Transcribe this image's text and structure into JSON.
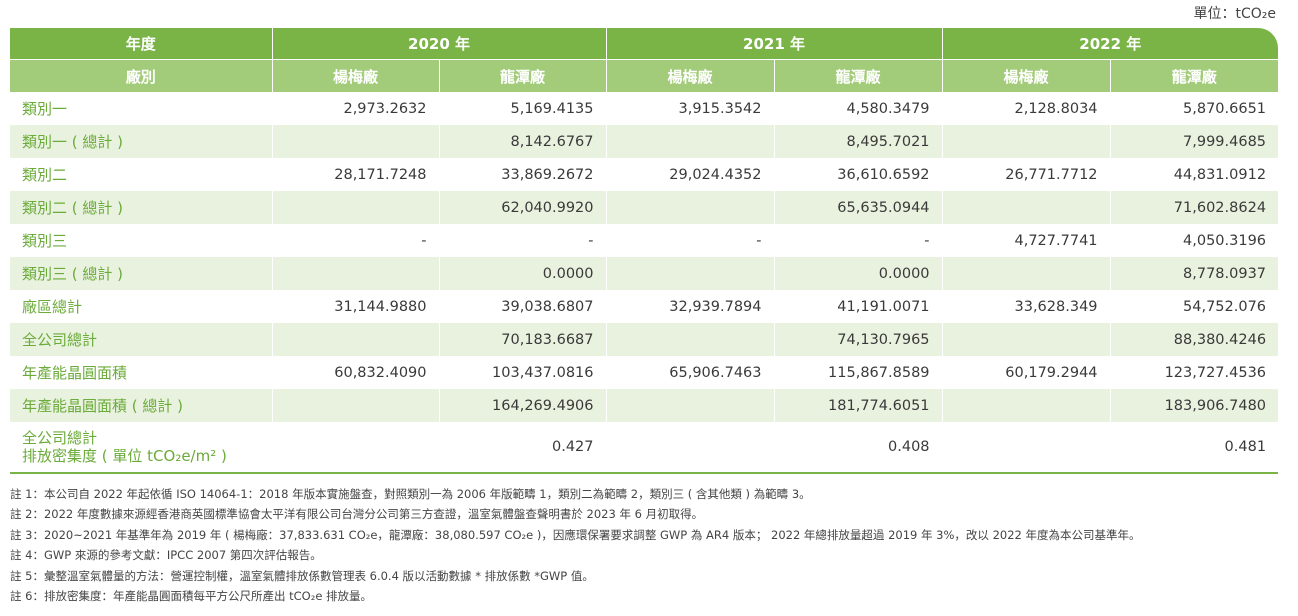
{
  "unit_label": "單位：tCO₂e",
  "header": {
    "year_label": "年度",
    "plant_label": "廠別",
    "years": [
      "2020 年",
      "2021 年",
      "2022 年"
    ],
    "plants": [
      "楊梅廠",
      "龍潭廠",
      "楊梅廠",
      "龍潭廠",
      "楊梅廠",
      "龍潭廠"
    ]
  },
  "rows": [
    {
      "label": "類別一",
      "cells": [
        "2,973.2632",
        "5,169.4135",
        "3,915.3542",
        "4,580.3479",
        "2,128.8034",
        "5,870.6651"
      ]
    },
    {
      "label": "類別一 ( 總計 )",
      "cells": [
        "",
        "8,142.6767",
        "",
        "8,495.7021",
        "",
        "7,999.4685"
      ]
    },
    {
      "label": "類別二",
      "cells": [
        "28,171.7248",
        "33,869.2672",
        "29,024.4352",
        "36,610.6592",
        "26,771.7712",
        "44,831.0912"
      ]
    },
    {
      "label": "類別二 ( 總計 )",
      "cells": [
        "",
        "62,040.9920",
        "",
        "65,635.0944",
        "",
        "71,602.8624"
      ]
    },
    {
      "label": "類別三",
      "cells": [
        "-",
        "-",
        "-",
        "-",
        "4,727.7741",
        "4,050.3196"
      ]
    },
    {
      "label": "類別三 ( 總計 )",
      "cells": [
        "",
        "0.0000",
        "",
        "0.0000",
        "",
        "8,778.0937"
      ]
    },
    {
      "label": "廠區總計",
      "cells": [
        "31,144.9880",
        "39,038.6807",
        "32,939.7894",
        "41,191.0071",
        "33,628.349",
        "54,752.076"
      ]
    },
    {
      "label": "全公司總計",
      "cells": [
        "",
        "70,183.6687",
        "",
        "74,130.7965",
        "",
        "88,380.4246"
      ]
    },
    {
      "label": "年產能晶圓面積",
      "cells": [
        "60,832.4090",
        "103,437.0816",
        "65,906.7463",
        "115,867.8589",
        "60,179.2944",
        "123,727.4536"
      ]
    },
    {
      "label": "年產能晶圓面積 ( 總計 )",
      "cells": [
        "",
        "164,269.4906",
        "",
        "181,774.6051",
        "",
        "183,906.7480"
      ]
    },
    {
      "label_line1": "全公司總計",
      "label_line2": "排放密集度 ( 單位 tCO₂e/m² )",
      "cells": [
        "",
        "0.427",
        "",
        "0.408",
        "",
        "0.481"
      ]
    }
  ],
  "notes": [
    "註 1：本公司自 2022 年起依循 ISO 14064-1：2018 年版本實施盤查，對照類別一為 2006 年版範疇 1，類別二為範疇 2，類別三 ( 含其他類 ) 為範疇 3。",
    "註 2：2022 年度數據來源經香港商英國標準協會太平洋有限公司台灣分公司第三方查證，溫室氣體盤查聲明書於 2023 年 6 月初取得。",
    "註 3：2020~2021 年基準年為 2019 年 ( 楊梅廠：37,833.631 CO₂e，龍潭廠：38,080.597 CO₂e )，因應環保署要求調整 GWP 為 AR4 版本； 2022 年總排放量超過 2019 年 3%，改以 2022 年度為本公司基準年。",
    "註 4：GWP 來源的參考文獻：IPCC 2007 第四次評估報告。",
    "註 5：彙整溫室氣體量的方法：營運控制權，溫室氣體排放係數管理表 6.0.4 版以活動數據 * 排放係數 *GWP 值。",
    "註 6：排放密集度：年產能晶圓面積每平方公尺所產出 tCO₂e 排放量。"
  ]
}
